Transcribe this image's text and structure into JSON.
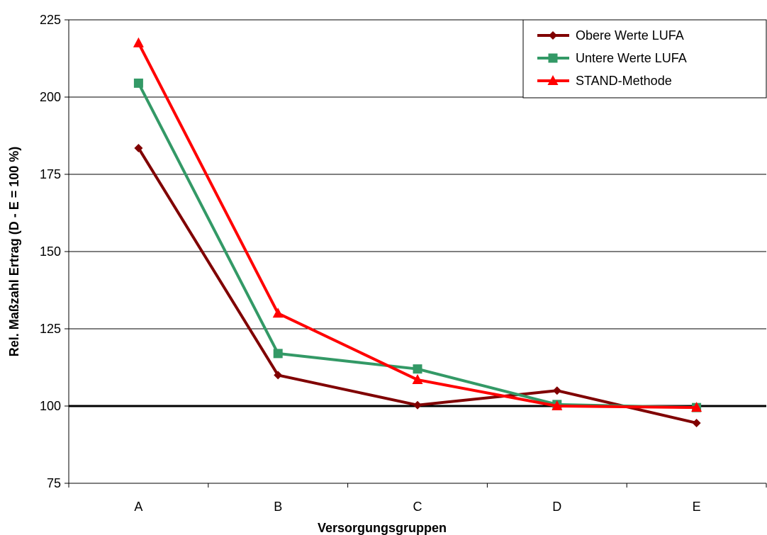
{
  "chart_data": {
    "type": "line",
    "categories": [
      "A",
      "B",
      "C",
      "D",
      "E"
    ],
    "xlabel": "Versorgungsgruppen",
    "ylabel": "Rel. Maßzahl Ertrag (D - E = 100 %)",
    "ylim": [
      75,
      225
    ],
    "yticks": [
      75,
      100,
      125,
      150,
      175,
      200,
      225
    ],
    "reference_line": 100,
    "grid": "horizontal",
    "legend_position": "top-right",
    "series": [
      {
        "name": "Obere Werte LUFA",
        "values": [
          183.5,
          110,
          100.3,
          105,
          94.5
        ],
        "color": "#800000",
        "marker": "diamond"
      },
      {
        "name": "Untere Werte LUFA",
        "values": [
          204.5,
          117,
          112,
          100.5,
          99.5
        ],
        "color": "#339966",
        "marker": "square"
      },
      {
        "name": "STAND-Methode",
        "values": [
          217.5,
          130,
          108.5,
          100,
          99.5
        ],
        "color": "#ff0000",
        "marker": "triangle"
      }
    ]
  }
}
